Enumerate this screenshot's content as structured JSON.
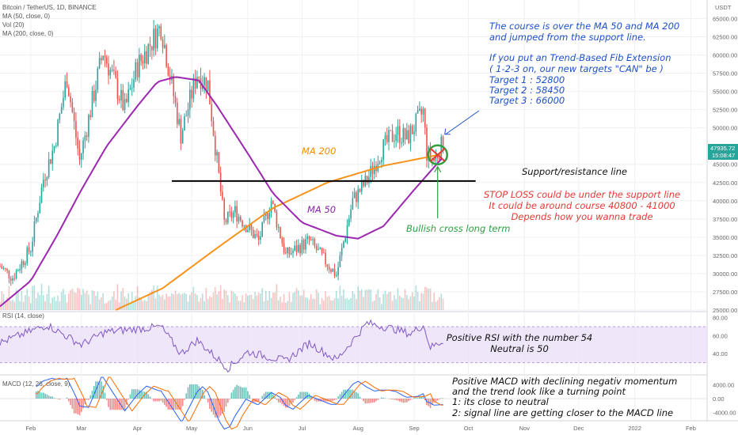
{
  "header": {
    "symbol": "Bitcoin / TetherUS, 1D, BINANCE",
    "indicators": [
      "MA (50, close, 0)",
      "Vol (20)",
      "MA (200, close, 0)"
    ],
    "currency": "USDT"
  },
  "price_tag": {
    "price": "47935.72",
    "countdown": "15:08:47",
    "color": "#26a69a"
  },
  "chart_data": [
    {
      "type": "candlestick",
      "x_range": [
        "2021-01-15",
        "2022-02-10"
      ],
      "ylim": [
        25000,
        67000
      ],
      "y_ticks": [
        "65000.00",
        "62500.00",
        "60000.00",
        "57500.00",
        "55000.00",
        "52500.00",
        "50000.00",
        "45000.00",
        "42500.00",
        "40000.00",
        "37500.00",
        "35000.00",
        "32500.00",
        "30000.00",
        "27500.00",
        "25000.00"
      ],
      "x_ticks": [
        "Feb",
        "Mar",
        "Apr",
        "May",
        "Jun",
        "Jul",
        "Aug",
        "Sep",
        "Oct",
        "Nov",
        "Dec",
        "2022",
        "Feb"
      ],
      "colors": {
        "up": "#26a69a",
        "down": "#ef5350"
      },
      "anchors": [
        {
          "date": "2021-01-15",
          "price": 31000
        },
        {
          "date": "2021-01-22",
          "price": 29500
        },
        {
          "date": "2021-02-01",
          "price": 33500
        },
        {
          "date": "2021-02-08",
          "price": 43000
        },
        {
          "date": "2021-02-14",
          "price": 47500
        },
        {
          "date": "2021-02-21",
          "price": 57000
        },
        {
          "date": "2021-02-28",
          "price": 45500
        },
        {
          "date": "2021-03-13",
          "price": 60500
        },
        {
          "date": "2021-03-25",
          "price": 52500
        },
        {
          "date": "2021-04-01",
          "price": 58500
        },
        {
          "date": "2021-04-14",
          "price": 64000
        },
        {
          "date": "2021-04-25",
          "price": 49000
        },
        {
          "date": "2021-05-04",
          "price": 57500
        },
        {
          "date": "2021-05-10",
          "price": 56000
        },
        {
          "date": "2021-05-19",
          "price": 37000
        },
        {
          "date": "2021-05-25",
          "price": 38500
        },
        {
          "date": "2021-06-07",
          "price": 34500
        },
        {
          "date": "2021-06-14",
          "price": 40000
        },
        {
          "date": "2021-06-22",
          "price": 32500
        },
        {
          "date": "2021-07-05",
          "price": 34500
        },
        {
          "date": "2021-07-20",
          "price": 29800
        },
        {
          "date": "2021-07-29",
          "price": 40000
        },
        {
          "date": "2021-08-06",
          "price": 42800
        },
        {
          "date": "2021-08-14",
          "price": 47000
        },
        {
          "date": "2021-08-22",
          "price": 49500
        },
        {
          "date": "2021-08-28",
          "price": 48500
        },
        {
          "date": "2021-09-06",
          "price": 52200
        },
        {
          "date": "2021-09-08",
          "price": 46500
        },
        {
          "date": "2021-09-12",
          "price": 45500
        },
        {
          "date": "2021-09-17",
          "price": 47935
        }
      ],
      "ma50": [
        {
          "date": "2021-01-15",
          "value": 25500
        },
        {
          "date": "2021-02-01",
          "value": 29000
        },
        {
          "date": "2021-02-15",
          "value": 35000
        },
        {
          "date": "2021-03-01",
          "value": 41500
        },
        {
          "date": "2021-03-15",
          "value": 47500
        },
        {
          "date": "2021-04-01",
          "value": 53000
        },
        {
          "date": "2021-04-12",
          "value": 56300
        },
        {
          "date": "2021-04-22",
          "value": 57000
        },
        {
          "date": "2021-05-05",
          "value": 56500
        },
        {
          "date": "2021-05-15",
          "value": 53000
        },
        {
          "date": "2021-06-01",
          "value": 46500
        },
        {
          "date": "2021-06-15",
          "value": 41000
        },
        {
          "date": "2021-07-01",
          "value": 37000
        },
        {
          "date": "2021-07-20",
          "value": 35200
        },
        {
          "date": "2021-08-01",
          "value": 34800
        },
        {
          "date": "2021-08-15",
          "value": 36500
        },
        {
          "date": "2021-09-01",
          "value": 41500
        },
        {
          "date": "2021-09-17",
          "value": 46000
        }
      ],
      "ma200": [
        {
          "date": "2021-03-20",
          "value": 25000
        },
        {
          "date": "2021-04-15",
          "value": 28000
        },
        {
          "date": "2021-05-15",
          "value": 33500
        },
        {
          "date": "2021-06-15",
          "value": 39000
        },
        {
          "date": "2021-07-15",
          "value": 42500
        },
        {
          "date": "2021-08-15",
          "value": 44800
        },
        {
          "date": "2021-09-17",
          "value": 46400
        }
      ],
      "support_line": {
        "price": 42700,
        "from": "2021-04-20",
        "to": "2021-10-05"
      },
      "line_colors": {
        "ma50": "#9c27b0",
        "ma200": "#f7931a"
      }
    },
    {
      "type": "line",
      "name": "RSI (14, close)",
      "ylim": [
        20,
        85
      ],
      "y_ticks": [
        "80.00",
        "60.00",
        "40.00"
      ],
      "band": [
        30,
        70
      ],
      "anchors": [
        {
          "date": "2021-01-15",
          "value": 52
        },
        {
          "date": "2021-02-10",
          "value": 72
        },
        {
          "date": "2021-03-01",
          "value": 50
        },
        {
          "date": "2021-03-14",
          "value": 64
        },
        {
          "date": "2021-04-14",
          "value": 70
        },
        {
          "date": "2021-04-25",
          "value": 40
        },
        {
          "date": "2021-05-04",
          "value": 55
        },
        {
          "date": "2021-05-21",
          "value": 24
        },
        {
          "date": "2021-06-01",
          "value": 42
        },
        {
          "date": "2021-06-22",
          "value": 32
        },
        {
          "date": "2021-07-05",
          "value": 52
        },
        {
          "date": "2021-07-20",
          "value": 33
        },
        {
          "date": "2021-08-06",
          "value": 74
        },
        {
          "date": "2021-08-20",
          "value": 68
        },
        {
          "date": "2021-08-30",
          "value": 62
        },
        {
          "date": "2021-09-06",
          "value": 72
        },
        {
          "date": "2021-09-10",
          "value": 47
        },
        {
          "date": "2021-09-17",
          "value": 54
        }
      ]
    },
    {
      "type": "bar",
      "name": "MACD (12, 26, close, 9)",
      "ylim": [
        -6000,
        6000
      ],
      "y_ticks": [
        "4000.00",
        "0.00",
        "-4000.00"
      ]
    }
  ],
  "annotations": {
    "top_note": [
      "The course is over the MA 50 and MA 200",
      "and jumped from the support line.",
      "",
      "If you put an Trend-Based Fib Extension",
      "( 1-2-3 on, our new targets \"CAN\" be )",
      "Target 1 : 52800",
      "Target 2 : 58450",
      "Target 3 : 66000"
    ],
    "ma200_label": "MA 200",
    "ma50_label": "MA 50",
    "support_label": "Support/resistance line",
    "stop_loss": [
      "STOP LOSS could be under the support line",
      "It could be around course 40800 - 41000",
      "Depends how you wanna trade"
    ],
    "bullish_cross": "Bullish cross long term",
    "rsi_note": [
      "Positive RSI with the number 54",
      "Neutral is 50"
    ],
    "macd_note": [
      "Positive MACD with declining negativ momentum",
      "and the trend look like a turning point",
      "1: its close to neutral",
      "2: signal line are getting closer to the MACD line"
    ],
    "colors": {
      "blue": "#1e50c8",
      "red": "#e53935",
      "green": "#2e9e3e",
      "purple": "#8e24aa",
      "orange": "#f08c00"
    }
  }
}
